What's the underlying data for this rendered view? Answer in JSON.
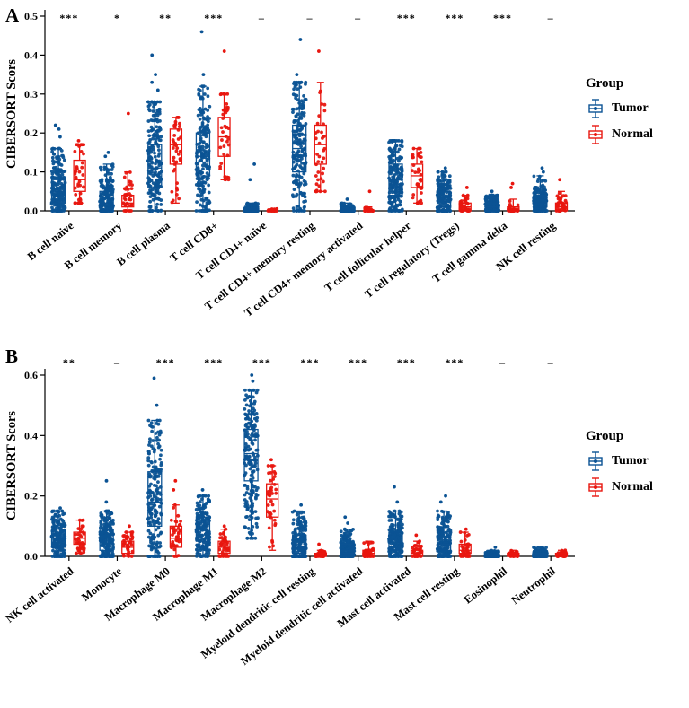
{
  "chart_data": [
    {
      "type": "scatter",
      "subtype": "jitter-boxplot",
      "panel": "A",
      "ylabel": "CIBERSORT Scors",
      "ylim": [
        0,
        0.5
      ],
      "yticks": [
        0.0,
        0.1,
        0.2,
        0.3,
        0.4,
        0.5
      ],
      "legend": {
        "title": "Group",
        "entries": [
          {
            "label": "Tumor",
            "color": "#0B5394"
          },
          {
            "label": "Normal",
            "color": "#E8160F"
          }
        ]
      },
      "categories": [
        "B cell naive",
        "B cell memory",
        "B cell plasma",
        "T cell CD8+",
        "T cell CD4+ naive",
        "T cell CD4+ memory resting",
        "T cell CD4+ memory activated",
        "T cell follicular helper",
        "T cell regulatory (Tregs)",
        "T cell gamma delta",
        "NK cell resting"
      ],
      "significance": [
        "***",
        "*",
        "**",
        "***",
        "–",
        "–",
        "–",
        "***",
        "***",
        "***",
        "–"
      ],
      "series": [
        {
          "name": "Tumor",
          "color": "#0B5394",
          "stats": [
            [
              0,
              0.02,
              0.05,
              0.08,
              0.16,
              200,
              [
                0.19,
                0.21,
                0.22
              ]
            ],
            [
              0,
              0.005,
              0.02,
              0.05,
              0.12,
              200,
              [
                0.14,
                0.15
              ]
            ],
            [
              0,
              0.06,
              0.11,
              0.17,
              0.28,
              200,
              [
                0.31,
                0.33,
                0.35,
                0.4
              ]
            ],
            [
              0,
              0.09,
              0.14,
              0.2,
              0.32,
              200,
              [
                0.35,
                0.46
              ]
            ],
            [
              0,
              0,
              0,
              0.005,
              0.02,
              200,
              [
                0.08,
                0.12
              ]
            ],
            [
              0,
              0.1,
              0.16,
              0.22,
              0.33,
              200,
              [
                0.35,
                0.44
              ]
            ],
            [
              0,
              0,
              0,
              0.005,
              0.02,
              200,
              [
                0.03
              ]
            ],
            [
              0,
              0.04,
              0.08,
              0.12,
              0.18,
              200,
              []
            ],
            [
              0,
              0.01,
              0.03,
              0.05,
              0.1,
              200,
              [
                0.11
              ]
            ],
            [
              0,
              0,
              0.01,
              0.02,
              0.04,
              200,
              [
                0.05
              ]
            ],
            [
              0,
              0.01,
              0.02,
              0.04,
              0.09,
              200,
              [
                0.1,
                0.11
              ]
            ]
          ]
        },
        {
          "name": "Normal",
          "color": "#E8160F",
          "stats": [
            [
              0.02,
              0.05,
              0.08,
              0.13,
              0.17,
              40,
              [
                0.18
              ]
            ],
            [
              0,
              0.01,
              0.02,
              0.04,
              0.1,
              40,
              [
                0.25
              ]
            ],
            [
              0.02,
              0.12,
              0.17,
              0.21,
              0.24,
              40,
              []
            ],
            [
              0.08,
              0.14,
              0.19,
              0.24,
              0.3,
              40,
              [
                0.41
              ]
            ],
            [
              0,
              0,
              0,
              0,
              0.005,
              40,
              []
            ],
            [
              0.05,
              0.12,
              0.17,
              0.22,
              0.33,
              40,
              [
                0.41
              ]
            ],
            [
              0,
              0,
              0,
              0,
              0.01,
              40,
              [
                0.05
              ]
            ],
            [
              0.02,
              0.06,
              0.09,
              0.12,
              0.16,
              40,
              []
            ],
            [
              0,
              0,
              0.01,
              0.02,
              0.04,
              40,
              [
                0.06
              ]
            ],
            [
              0,
              0,
              0,
              0.01,
              0.03,
              40,
              [
                0.06,
                0.07
              ]
            ],
            [
              0,
              0,
              0.01,
              0.02,
              0.05,
              40,
              [
                0.08
              ]
            ]
          ]
        }
      ]
    },
    {
      "type": "scatter",
      "subtype": "jitter-boxplot",
      "panel": "B",
      "ylabel": "CIBERSORT Scors",
      "ylim": [
        0,
        0.6
      ],
      "yticks": [
        0.0,
        0.2,
        0.4,
        0.6
      ],
      "legend": {
        "title": "Group",
        "entries": [
          {
            "label": "Tumor",
            "color": "#0B5394"
          },
          {
            "label": "Normal",
            "color": "#E8160F"
          }
        ]
      },
      "categories": [
        "NK cell activated",
        "Monocyte",
        "Macrophage M0",
        "Macrophage M1",
        "Macrophage M2",
        "Myeloid dendritic cell resting",
        "Myeloid dendritic cell activated",
        "Mast cell activated",
        "Mast cell resting",
        "Eosinophil",
        "Neutrophil"
      ],
      "significance": [
        "**",
        "–",
        "***",
        "***",
        "***",
        "***",
        "***",
        "***",
        "***",
        "–",
        "–"
      ],
      "series": [
        {
          "name": "Tumor",
          "color": "#0B5394",
          "stats": [
            [
              0,
              0.03,
              0.06,
              0.09,
              0.15,
              200,
              [
                0.16
              ]
            ],
            [
              0,
              0.02,
              0.05,
              0.09,
              0.15,
              200,
              [
                0.18,
                0.25
              ]
            ],
            [
              0,
              0.1,
              0.18,
              0.28,
              0.45,
              200,
              [
                0.5,
                0.59
              ]
            ],
            [
              0,
              0.05,
              0.09,
              0.13,
              0.2,
              200,
              [
                0.22
              ]
            ],
            [
              0.06,
              0.25,
              0.34,
              0.42,
              0.55,
              200,
              [
                0.58,
                0.6
              ]
            ],
            [
              0,
              0.01,
              0.03,
              0.07,
              0.15,
              200,
              [
                0.17
              ]
            ],
            [
              0,
              0.01,
              0.02,
              0.04,
              0.09,
              200,
              [
                0.11,
                0.13
              ]
            ],
            [
              0,
              0.02,
              0.05,
              0.08,
              0.15,
              200,
              [
                0.18,
                0.23
              ]
            ],
            [
              0,
              0.02,
              0.04,
              0.08,
              0.15,
              200,
              [
                0.18,
                0.2
              ]
            ],
            [
              0,
              0,
              0,
              0.005,
              0.02,
              200,
              [
                0.03
              ]
            ],
            [
              0,
              0,
              0.005,
              0.01,
              0.03,
              200,
              []
            ]
          ]
        },
        {
          "name": "Normal",
          "color": "#E8160F",
          "stats": [
            [
              0.01,
              0.04,
              0.06,
              0.08,
              0.12,
              40,
              []
            ],
            [
              0,
              0.01,
              0.03,
              0.05,
              0.08,
              40,
              [
                0.1
              ]
            ],
            [
              0,
              0.03,
              0.06,
              0.1,
              0.17,
              40,
              [
                0.22,
                0.25
              ]
            ],
            [
              0,
              0.01,
              0.03,
              0.05,
              0.09,
              40,
              [
                0.1
              ]
            ],
            [
              0.02,
              0.13,
              0.19,
              0.24,
              0.3,
              40,
              [
                0.32
              ]
            ],
            [
              0,
              0,
              0.005,
              0.01,
              0.02,
              40,
              [
                0.04
              ]
            ],
            [
              0,
              0,
              0.01,
              0.02,
              0.05,
              40,
              []
            ],
            [
              0,
              0,
              0.01,
              0.02,
              0.05,
              40,
              [
                0.07
              ]
            ],
            [
              0,
              0.01,
              0.02,
              0.04,
              0.08,
              40,
              [
                0.09
              ]
            ],
            [
              0,
              0,
              0.005,
              0.01,
              0.02,
              40,
              []
            ],
            [
              0,
              0,
              0.005,
              0.01,
              0.02,
              40,
              []
            ]
          ]
        }
      ]
    }
  ]
}
